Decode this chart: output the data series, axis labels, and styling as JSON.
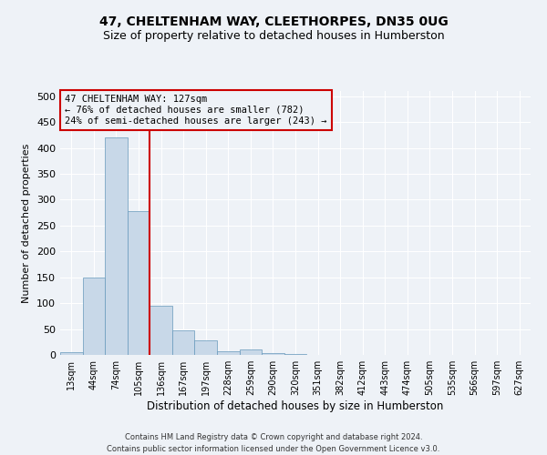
{
  "title": "47, CHELTENHAM WAY, CLEETHORPES, DN35 0UG",
  "subtitle": "Size of property relative to detached houses in Humberston",
  "xlabel": "Distribution of detached houses by size in Humberston",
  "ylabel": "Number of detached properties",
  "footer_line1": "Contains HM Land Registry data © Crown copyright and database right 2024.",
  "footer_line2": "Contains public sector information licensed under the Open Government Licence v3.0.",
  "bin_labels": [
    "13sqm",
    "44sqm",
    "74sqm",
    "105sqm",
    "136sqm",
    "167sqm",
    "197sqm",
    "228sqm",
    "259sqm",
    "290sqm",
    "320sqm",
    "351sqm",
    "382sqm",
    "412sqm",
    "443sqm",
    "474sqm",
    "505sqm",
    "535sqm",
    "566sqm",
    "597sqm",
    "627sqm"
  ],
  "bar_values": [
    5,
    150,
    420,
    278,
    95,
    48,
    29,
    7,
    10,
    3,
    2,
    0,
    0,
    0,
    0,
    0,
    0,
    0,
    0,
    0,
    0
  ],
  "bar_color": "#c8d8e8",
  "bar_edge_color": "#6699bb",
  "property_label": "47 CHELTENHAM WAY: 127sqm",
  "annotation_line1": "← 76% of detached houses are smaller (782)",
  "annotation_line2": "24% of semi-detached houses are larger (243) →",
  "line_color": "#cc0000",
  "box_edge_color": "#cc0000",
  "ylim": [
    0,
    510
  ],
  "yticks": [
    0,
    50,
    100,
    150,
    200,
    250,
    300,
    350,
    400,
    450,
    500
  ],
  "background_color": "#eef2f7",
  "grid_color": "#ffffff",
  "title_fontsize": 10,
  "subtitle_fontsize": 9
}
